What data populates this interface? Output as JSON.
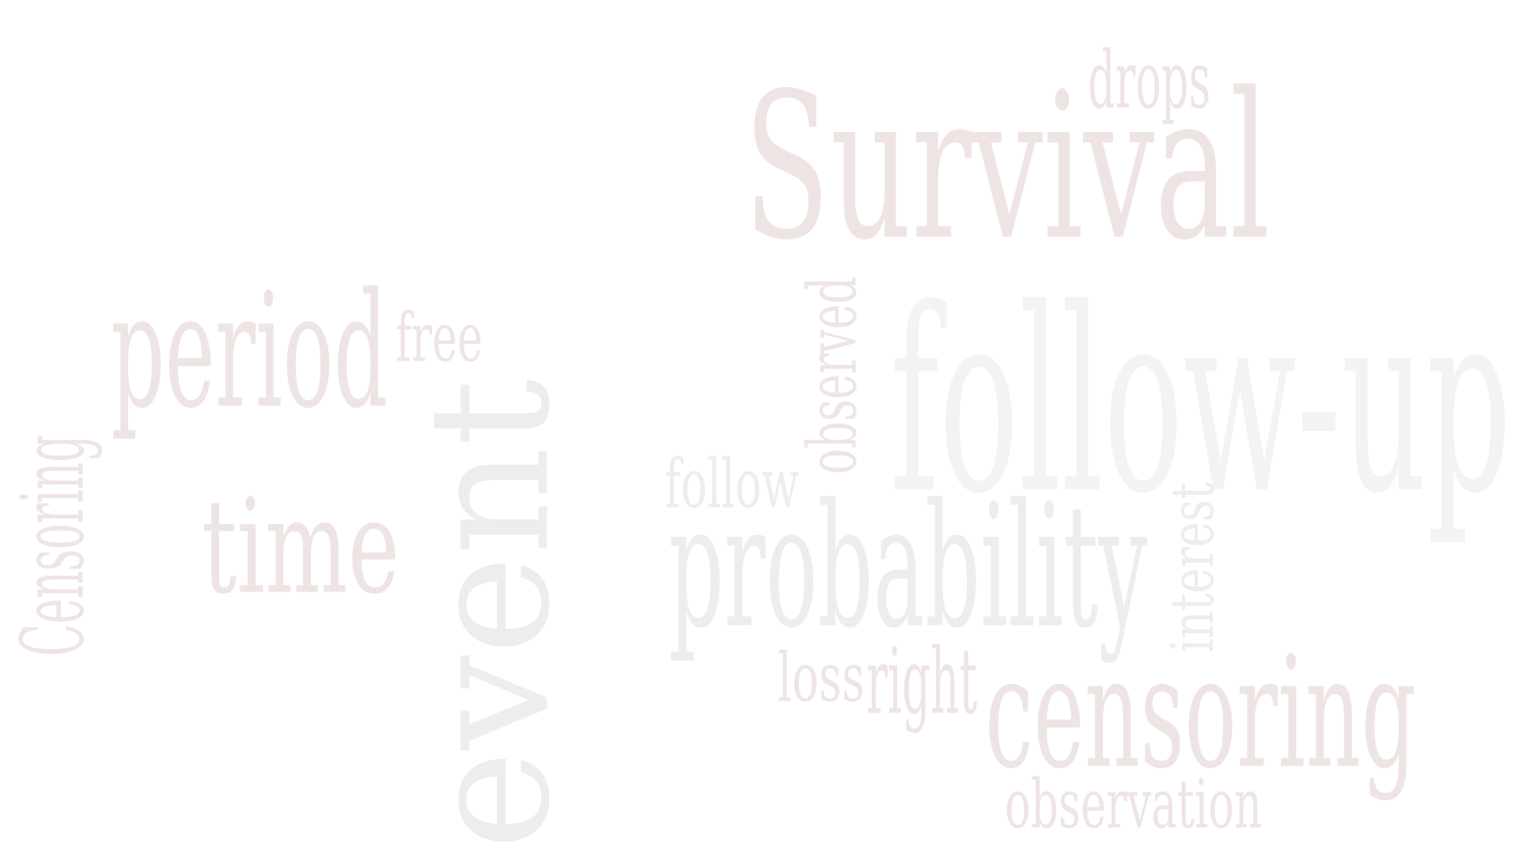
{
  "palette": {
    "background": "#ffffff",
    "pink": "#efe4e4",
    "grey": "#ededed",
    "pale": "#f3f3f3"
  },
  "words": [
    {
      "text": "Survival",
      "color": "pink"
    },
    {
      "text": "drops",
      "color": "pink"
    },
    {
      "text": "follow-up",
      "color": "pale"
    },
    {
      "text": "observed",
      "color": "pink"
    },
    {
      "text": "period",
      "color": "pink"
    },
    {
      "text": "free",
      "color": "pink"
    },
    {
      "text": "Censoring",
      "color": "pink"
    },
    {
      "text": "time",
      "color": "pink"
    },
    {
      "text": "event",
      "color": "grey"
    },
    {
      "text": "follow",
      "color": "grey"
    },
    {
      "text": "probability",
      "color": "grey"
    },
    {
      "text": "interest",
      "color": "grey"
    },
    {
      "text": "loss",
      "color": "pink"
    },
    {
      "text": "right",
      "color": "pink"
    },
    {
      "text": "censoring",
      "color": "pink"
    },
    {
      "text": "observation",
      "color": "pink"
    }
  ]
}
